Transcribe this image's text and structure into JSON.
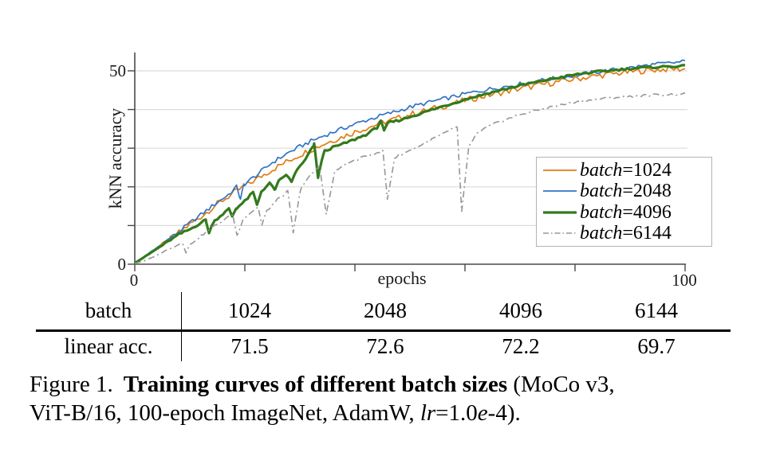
{
  "chart_data": {
    "type": "line",
    "title": "",
    "x_axis": {
      "label": "epochs",
      "min": 0,
      "max": 100,
      "ticks": [
        0,
        20,
        40,
        60,
        80,
        100
      ],
      "tick_labels": [
        "0",
        "100"
      ]
    },
    "y_axis": {
      "label": "kNN accuracy",
      "min": 0,
      "max": 55,
      "ticks": [
        0,
        10,
        20,
        30,
        40,
        50
      ],
      "tick_labels": [
        "0",
        "50"
      ],
      "grid": "horizontal"
    },
    "legend_position": "lower right inside",
    "series": [
      {
        "name": "batch=1024",
        "label_var": "batch",
        "label_value": "=1024",
        "color": "#e07d10",
        "line_width": 1.7,
        "dash": "",
        "noise": 0.8,
        "points": [
          [
            0,
            0.3
          ],
          [
            2,
            2.1
          ],
          [
            5,
            5.1
          ],
          [
            8,
            8.2
          ],
          [
            10,
            10.3
          ],
          [
            12,
            12.3
          ],
          [
            15,
            15.6
          ],
          [
            18,
            18.4
          ],
          [
            20,
            20.2
          ],
          [
            22,
            21.9
          ],
          [
            25,
            24.5
          ],
          [
            28,
            26.8
          ],
          [
            30,
            28.3
          ],
          [
            32,
            29.6
          ],
          [
            35,
            31.5
          ],
          [
            38,
            33.1
          ],
          [
            40,
            34.2
          ],
          [
            42,
            35.2
          ],
          [
            45,
            36.6
          ],
          [
            48,
            37.8
          ],
          [
            50,
            38.7
          ],
          [
            52,
            39.4
          ],
          [
            55,
            40.5
          ],
          [
            58,
            41.5
          ],
          [
            60,
            42.4
          ],
          [
            62,
            43.0
          ],
          [
            65,
            43.9
          ],
          [
            68,
            44.8
          ],
          [
            70,
            45.4
          ],
          [
            72,
            45.9
          ],
          [
            75,
            46.7
          ],
          [
            78,
            47.4
          ],
          [
            80,
            47.9
          ],
          [
            82,
            48.3
          ],
          [
            85,
            48.9
          ],
          [
            88,
            49.4
          ],
          [
            90,
            49.7
          ],
          [
            92,
            50.0
          ],
          [
            95,
            50.3
          ],
          [
            98,
            50.5
          ],
          [
            100,
            50.4
          ]
        ]
      },
      {
        "name": "batch=2048",
        "label_var": "batch",
        "label_value": "=2048",
        "color": "#3273c5",
        "line_width": 1.7,
        "dash": "",
        "noise": 0.55,
        "points": [
          [
            0,
            0.3
          ],
          [
            2,
            2.2
          ],
          [
            5,
            5.3
          ],
          [
            8,
            8.4
          ],
          [
            10,
            10.6
          ],
          [
            12,
            12.8
          ],
          [
            15,
            16.0
          ],
          [
            17,
            18.0
          ],
          [
            18.6,
            20.1
          ],
          [
            19.2,
            16.5
          ],
          [
            19.8,
            20.6
          ],
          [
            22,
            22.9
          ],
          [
            25,
            26.3
          ],
          [
            28,
            28.9
          ],
          [
            30,
            30.4
          ],
          [
            32,
            31.8
          ],
          [
            35,
            33.6
          ],
          [
            38,
            35.2
          ],
          [
            40,
            36.2
          ],
          [
            42,
            37.2
          ],
          [
            45,
            38.5
          ],
          [
            48,
            39.7
          ],
          [
            50,
            40.6
          ],
          [
            52,
            41.3
          ],
          [
            55,
            42.4
          ],
          [
            58,
            43.3
          ],
          [
            60,
            44.0
          ],
          [
            62,
            44.6
          ],
          [
            65,
            45.4
          ],
          [
            68,
            46.1
          ],
          [
            70,
            46.6
          ],
          [
            72,
            47.1
          ],
          [
            75,
            47.8
          ],
          [
            78,
            48.4
          ],
          [
            80,
            48.8
          ],
          [
            82,
            49.3
          ],
          [
            85,
            49.9
          ],
          [
            88,
            50.4
          ],
          [
            90,
            50.8
          ],
          [
            92,
            51.2
          ],
          [
            95,
            51.7
          ],
          [
            98,
            52.1
          ],
          [
            100,
            52.4
          ]
        ]
      },
      {
        "name": "batch=4096",
        "label_var": "batch",
        "label_value": "=4096",
        "color": "#337a1c",
        "line_width": 3.2,
        "dash": "",
        "noise": 0.28,
        "points": [
          [
            0,
            0.3
          ],
          [
            2,
            2.1
          ],
          [
            5,
            4.9
          ],
          [
            8,
            7.7
          ],
          [
            10,
            9.0
          ],
          [
            12,
            10.7
          ],
          [
            12.9,
            11.5
          ],
          [
            13.5,
            8.0
          ],
          [
            14.3,
            11.0
          ],
          [
            16,
            13.0
          ],
          [
            17.1,
            14.3
          ],
          [
            17.7,
            12.4
          ],
          [
            18.4,
            14.4
          ],
          [
            20,
            16.3
          ],
          [
            21.5,
            18.6
          ],
          [
            22.2,
            15.3
          ],
          [
            23,
            18.8
          ],
          [
            24.5,
            21.0
          ],
          [
            25.4,
            19.2
          ],
          [
            26.2,
            21.5
          ],
          [
            27.5,
            23.2
          ],
          [
            28.5,
            21.2
          ],
          [
            29.2,
            23.8
          ],
          [
            31,
            27.0
          ],
          [
            32.6,
            31.0
          ],
          [
            33.3,
            22.5
          ],
          [
            34.4,
            29.2
          ],
          [
            36,
            30.2
          ],
          [
            38,
            31.2
          ],
          [
            40,
            32.3
          ],
          [
            42,
            33.5
          ],
          [
            44,
            35.3
          ],
          [
            44.7,
            37.2
          ],
          [
            45.3,
            34.3
          ],
          [
            46,
            36.6
          ],
          [
            48,
            37.2
          ],
          [
            50,
            38.1
          ],
          [
            52,
            39.0
          ],
          [
            55,
            40.4
          ],
          [
            58,
            41.7
          ],
          [
            60,
            42.6
          ],
          [
            62,
            43.4
          ],
          [
            65,
            44.5
          ],
          [
            68,
            45.5
          ],
          [
            70,
            46.2
          ],
          [
            72,
            46.8
          ],
          [
            75,
            47.7
          ],
          [
            78,
            48.5
          ],
          [
            80,
            49.0
          ],
          [
            82,
            49.4
          ],
          [
            85,
            49.9
          ],
          [
            88,
            50.3
          ],
          [
            90,
            50.6
          ],
          [
            92,
            50.8
          ],
          [
            95,
            51.0
          ],
          [
            98,
            51.2
          ],
          [
            100,
            51.2
          ]
        ]
      },
      {
        "name": "batch=6144",
        "label_var": "batch",
        "label_value": "=6144",
        "color": "#969696",
        "line_width": 1.6,
        "dash": "8 4 2 4",
        "noise": 0.3,
        "points": [
          [
            0,
            0.2
          ],
          [
            2,
            1.0
          ],
          [
            4,
            2.3
          ],
          [
            6,
            3.8
          ],
          [
            8,
            5.1
          ],
          [
            8.7,
            5.5
          ],
          [
            9.3,
            3.0
          ],
          [
            10,
            5.0
          ],
          [
            12,
            7.3
          ],
          [
            14,
            9.4
          ],
          [
            16,
            11.3
          ],
          [
            17.8,
            12.8
          ],
          [
            18.6,
            7.4
          ],
          [
            19.6,
            11.5
          ],
          [
            21,
            13.3
          ],
          [
            22.4,
            14.8
          ],
          [
            23.1,
            10.1
          ],
          [
            24,
            13.8
          ],
          [
            26,
            16.8
          ],
          [
            27.8,
            18.8
          ],
          [
            28.8,
            8.2
          ],
          [
            30.2,
            19.8
          ],
          [
            32,
            23.1
          ],
          [
            33.6,
            25.3
          ],
          [
            34.8,
            12.9
          ],
          [
            36.3,
            23.8
          ],
          [
            38,
            25.7
          ],
          [
            40,
            26.9
          ],
          [
            42,
            27.9
          ],
          [
            44,
            28.9
          ],
          [
            45.1,
            29.3
          ],
          [
            45.9,
            16.8
          ],
          [
            47.2,
            27.4
          ],
          [
            48,
            28.2
          ],
          [
            50,
            29.4
          ],
          [
            52,
            30.8
          ],
          [
            55,
            33.0
          ],
          [
            57,
            34.4
          ],
          [
            58.6,
            35.4
          ],
          [
            59.4,
            13.5
          ],
          [
            60.7,
            30.3
          ],
          [
            62,
            33.6
          ],
          [
            64,
            35.4
          ],
          [
            66,
            36.7
          ],
          [
            68,
            37.7
          ],
          [
            70,
            38.7
          ],
          [
            72,
            39.4
          ],
          [
            75,
            40.5
          ],
          [
            78,
            41.3
          ],
          [
            80,
            41.9
          ],
          [
            82,
            42.3
          ],
          [
            85,
            42.8
          ],
          [
            88,
            43.2
          ],
          [
            90,
            43.4
          ],
          [
            92,
            43.6
          ],
          [
            95,
            43.8
          ],
          [
            98,
            43.9
          ],
          [
            100,
            44.0
          ]
        ]
      }
    ]
  },
  "table": {
    "header_label": "batch",
    "columns": [
      "1024",
      "2048",
      "4096",
      "6144"
    ],
    "rows": [
      {
        "label": "linear acc.",
        "values": [
          "71.5",
          "72.6",
          "72.2",
          "69.7"
        ]
      }
    ]
  },
  "caption": {
    "figure_label": "Figure 1.",
    "bold_text": "Training curves of different batch sizes",
    "line1_suffix": " (MoCo v3,",
    "line2_prefix": "ViT-B/16, 100-epoch ImageNet, AdamW, ",
    "lr_italic": "lr",
    "lr_equals": "=1.0",
    "e_italic": "e",
    "line2_suffix": "-4)."
  }
}
